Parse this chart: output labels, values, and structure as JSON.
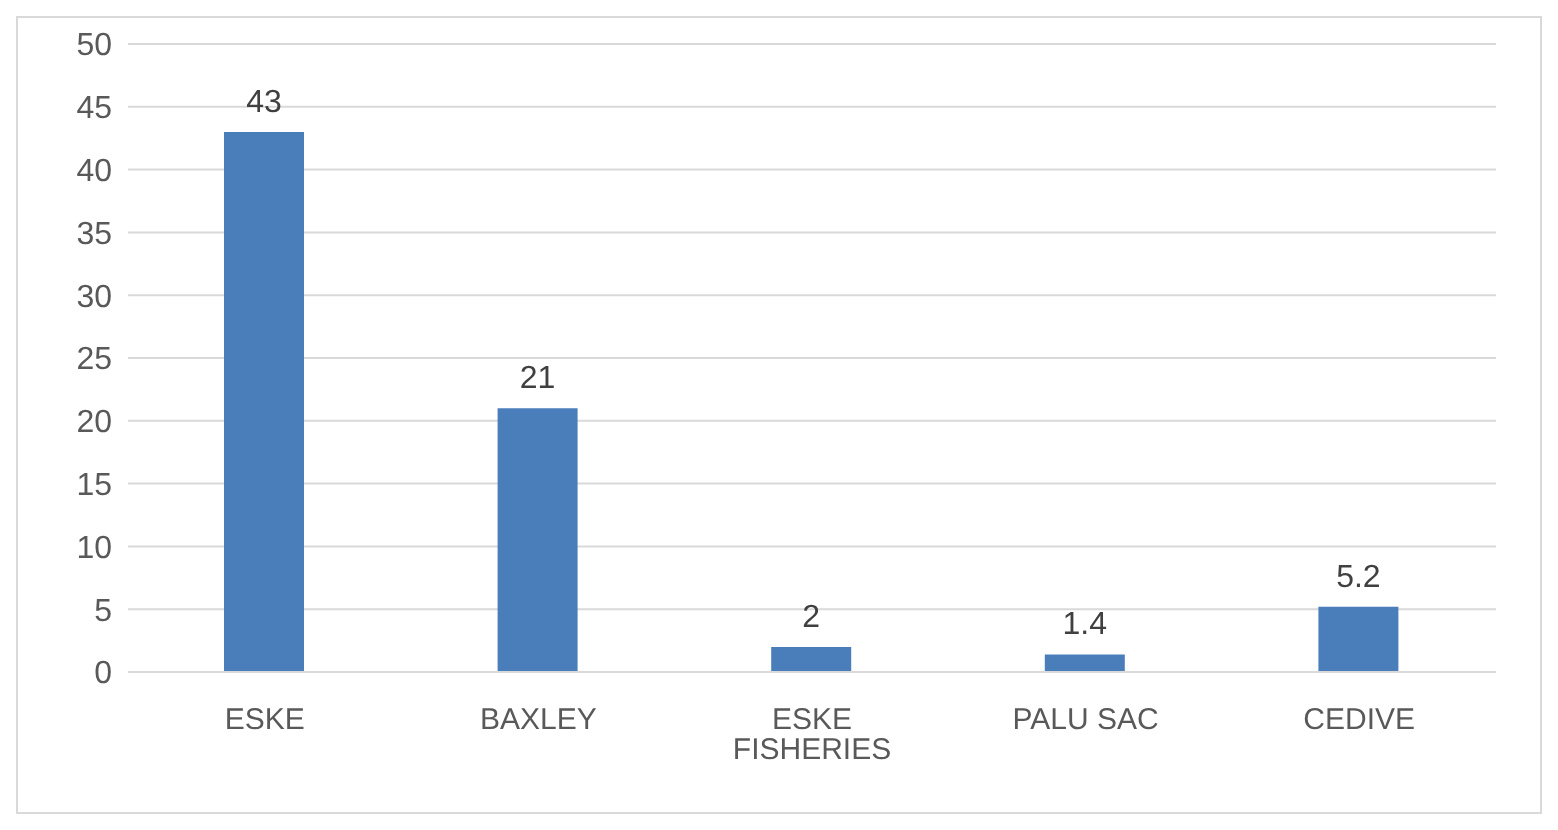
{
  "chart_data": {
    "type": "bar",
    "categories": [
      "ESKE",
      "BAXLEY",
      "ESKE FISHERIES",
      "PALU SAC",
      "CEDIVE"
    ],
    "values": [
      43,
      21,
      2,
      1.4,
      5.2
    ],
    "color": "#4a7ebb",
    "ylim": [
      0,
      50
    ],
    "yticks": [
      0,
      5,
      10,
      15,
      20,
      25,
      30,
      35,
      40,
      45,
      50
    ],
    "grid": "y",
    "data_labels": true,
    "legend": false
  }
}
